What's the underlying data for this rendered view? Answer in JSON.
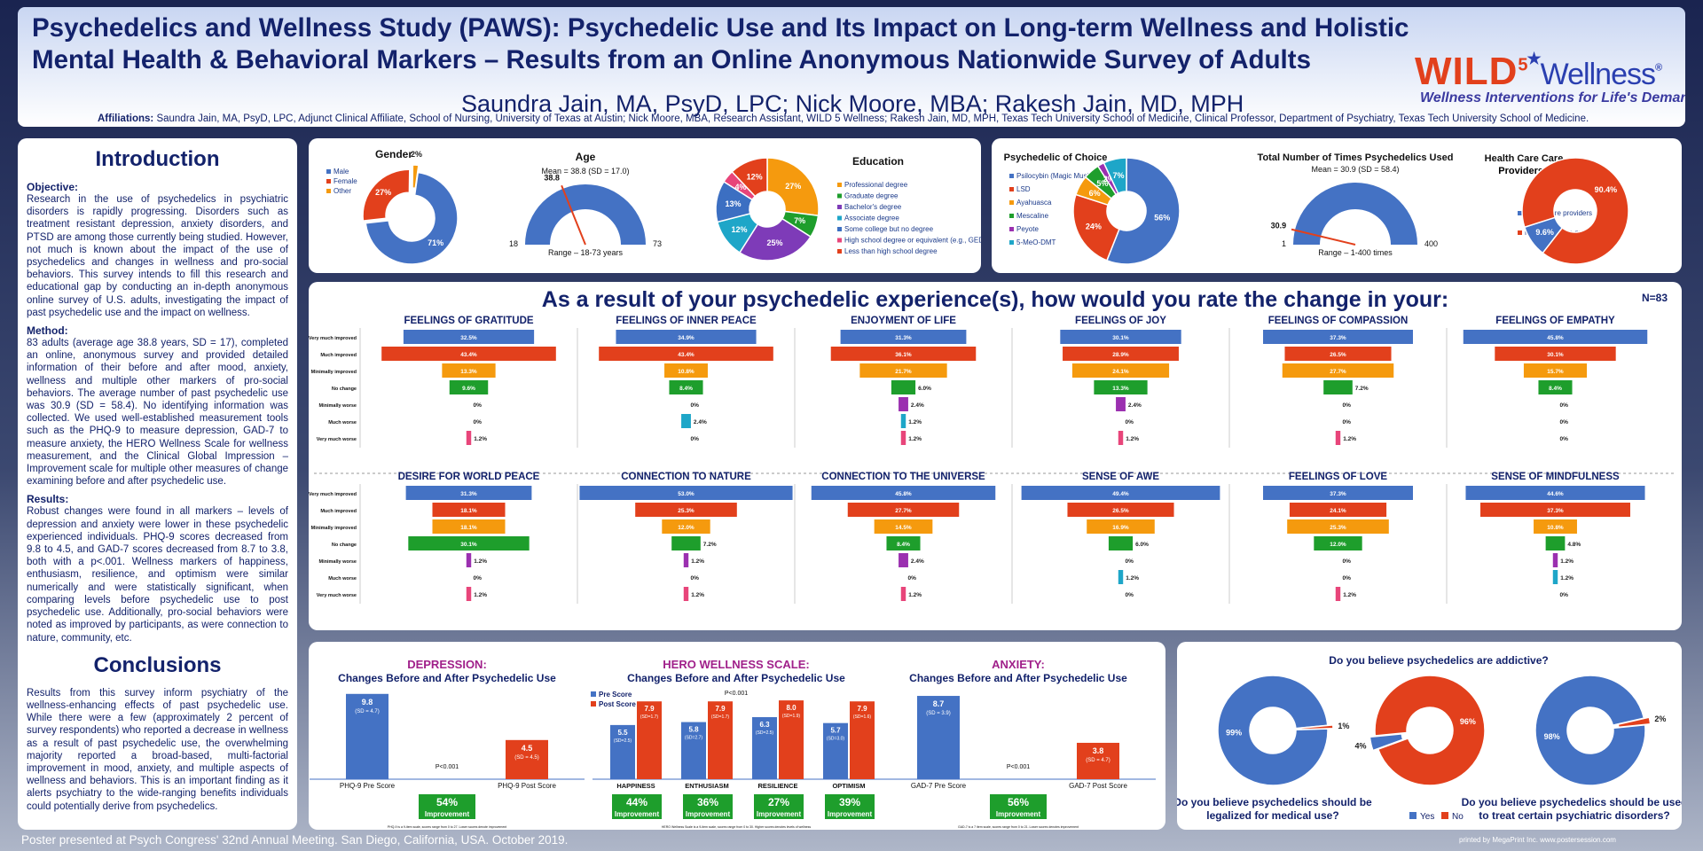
{
  "header": {
    "title": "Psychedelics and Wellness Study (PAWS): Psychedelic Use and Its Impact on Long-term Wellness and Holistic Mental Health & Behavioral Markers – Results from an Online Anonymous Nationwide Survey of Adults",
    "authors": "Saundra Jain, MA, PsyD, LPC; Nick Moore, MBA; Rakesh Jain, MD, MPH",
    "affiliations_label": "Affiliations:",
    "affiliations": "Saundra Jain, MA, PsyD, LPC, Adjunct Clinical Affiliate, School of Nursing, University of Texas at Austin; Nick Moore, MBA, Research Assistant, WILD 5 Wellness; Rakesh Jain, MD, MPH, Texas Tech University School of Medicine, Clinical Professor, Department of Psychiatry, Texas Tech University School of Medicine.",
    "logo_wild": "WILD",
    "logo_five": "5",
    "logo_wellness": "Wellness",
    "logo_reg": "®",
    "logo_tagline": "Wellness Interventions for Life's Demands"
  },
  "left": {
    "intro_title": "Introduction",
    "objective_label": "Objective:",
    "objective": "Research in the use of psychedelics in psychiatric disorders is rapidly progressing. Disorders such as treatment resistant depression, anxiety disorders, and PTSD are among those currently being studied. However, not much is known about the impact of the use of psychedelics and changes in wellness and pro-social behaviors. This survey intends to fill this research and educational gap by conducting an in-depth anonymous online survey of U.S. adults, investigating the impact of past psychedelic use and the impact on wellness.",
    "method_label": "Method:",
    "method": "83 adults (average age 38.8 years, SD = 17), completed an online, anonymous survey and provided detailed information of their before and after mood, anxiety, wellness and multiple other markers of pro-social behaviors. The average number of past psychedelic use was 30.9 (SD = 58.4). No identifying information was collected. We used well-established measurement tools such as the PHQ-9 to measure depression, GAD-7 to measure anxiety, the HERO Wellness Scale for wellness measurement, and the Clinical Global Impression – Improvement scale for multiple other measures of change examining before and after psychedelic use.",
    "results_label": "Results:",
    "results": "Robust changes were found in all markers – levels of depression and anxiety were lower in these psychedelic experienced individuals. PHQ-9 scores decreased from 9.8 to 4.5, and GAD-7 scores decreased from 8.7 to 3.8, both with a p<.001. Wellness markers of happiness, enthusiasm, resilience, and optimism were similar numerically and were statistically significant, when comparing levels before psychedelic use to post psychedelic use. Additionally, pro-social behaviors were noted as improved by participants, as were connection to nature, community, etc.",
    "conclusions_title": "Conclusions",
    "conclusions": "Results from this survey inform psychiatry of the wellness-enhancing effects of past psychedelic use. While there were a few (approximately 2 percent of survey respondents) who reported a decrease in wellness as a result of past psychedelic use, the overwhelming majority reported a broad-based, multi-factorial improvement in mood, anxiety, and multiple aspects of wellness and behaviors. This is an important finding as it alerts psychiatry to the wide-ranging benefits individuals could potentially derive from psychedelics."
  },
  "footer": {
    "text": "Poster presented at Psych Congress' 32nd Annual Meeting. San Diego, California, USA. October 2019.",
    "printer": "printed by MegaPrint Inc.   www.postersession.com"
  },
  "chart_data": [
    {
      "id": "gender",
      "type": "pie",
      "title": "Gender",
      "categories": [
        "Male",
        "Female",
        "Other"
      ],
      "values": [
        71,
        27,
        2
      ],
      "labels": [
        "71%",
        "27%",
        "2%"
      ],
      "colors": [
        "#4472c4",
        "#e2401c",
        "#f59a0e"
      ]
    },
    {
      "id": "age",
      "type": "gauge",
      "title": "Age",
      "subtitle": "Mean = 38.8 (SD = 17.0)",
      "min": 18,
      "max": 73,
      "value": 38.8,
      "min_label": "18",
      "max_label": "73",
      "value_label": "38.8",
      "footer": "Range – 18-73 years"
    },
    {
      "id": "education",
      "type": "pie",
      "title": "Education",
      "categories": [
        "Professional degree",
        "Graduate degree",
        "Bachelor's degree",
        "Associate degree",
        "Some college but no degree",
        "High school degree or equivalent (e.g., GED)",
        "Less than high school degree"
      ],
      "values": [
        27,
        7,
        25,
        12,
        13,
        4,
        12
      ],
      "labels": [
        "27%",
        "7%",
        "25%",
        "12%",
        "13%",
        "4%",
        "12%"
      ],
      "colors": [
        "#f59a0e",
        "#1e9e2c",
        "#7e3bb8",
        "#1ea6c8",
        "#3c6fc2",
        "#e8457a",
        "#e2401c"
      ]
    },
    {
      "id": "psychedelic",
      "type": "pie",
      "title": "Psychedelic of Choice",
      "categories": [
        "Psilocybin (Magic Mushrooms)",
        "LSD",
        "Ayahuasca",
        "Mescaline",
        "Peyote",
        "5-MeO-DMT"
      ],
      "values": [
        56,
        24,
        6,
        5,
        2,
        7
      ],
      "labels": [
        "56%",
        "24%",
        "6%",
        "5%",
        "2%",
        "7%"
      ],
      "colors": [
        "#4472c4",
        "#e2401c",
        "#f59a0e",
        "#1e9e2c",
        "#9b30b0",
        "#1ea6c8"
      ]
    },
    {
      "id": "times",
      "type": "gauge",
      "title": "Total Number of Times Psychedelics Used",
      "subtitle": "Mean = 30.9 (SD = 58.4)",
      "min": 1,
      "max": 400,
      "value": 30.9,
      "min_label": "1",
      "max_label": "400",
      "value_label": "30.9",
      "footer": "Range – 1-400 times"
    },
    {
      "id": "providers",
      "type": "pie",
      "title": "Health Care Providers?",
      "categories": [
        "Health care providers",
        "Not health care providers"
      ],
      "values": [
        9.6,
        90.4
      ],
      "labels": [
        "9.6%",
        "90.4%"
      ],
      "colors": [
        "#4472c4",
        "#e2401c"
      ]
    },
    {
      "id": "change",
      "type": "bar",
      "title": "As a result of your psychedelic experience(s), how would you rate the change in your:",
      "n_label": "N=83",
      "categories": [
        "Very much improved",
        "Much improved",
        "Minimally improved",
        "No change",
        "Minimally worse",
        "Much worse",
        "Very much worse"
      ],
      "colors": [
        "#4472c4",
        "#e2401c",
        "#f59a0e",
        "#1e9e2c",
        "#9b30b0",
        "#1ea6c8",
        "#e8457a"
      ],
      "series": [
        {
          "name": "FEELINGS OF GRATITUDE",
          "values": [
            32.5,
            43.4,
            13.3,
            9.6,
            0,
            0,
            1.2
          ],
          "labels": [
            "32.5%",
            "43.4%",
            "13.3%",
            "9.6%",
            "0%",
            "0%",
            "1.2%"
          ]
        },
        {
          "name": "FEELINGS OF INNER PEACE",
          "values": [
            34.9,
            43.4,
            10.8,
            8.4,
            0,
            2.4,
            0
          ],
          "labels": [
            "34.9%",
            "43.4%",
            "10.8%",
            "8.4%",
            "0%",
            "2.4%",
            "0%"
          ]
        },
        {
          "name": "ENJOYMENT OF LIFE",
          "values": [
            31.3,
            36.1,
            21.7,
            6.0,
            2.4,
            1.2,
            1.2
          ],
          "labels": [
            "31.3%",
            "36.1%",
            "21.7%",
            "6.0%",
            "2.4%",
            "1.2%",
            "1.2%"
          ]
        },
        {
          "name": "FEELINGS OF JOY",
          "values": [
            30.1,
            28.9,
            24.1,
            13.3,
            2.4,
            0,
            1.2
          ],
          "labels": [
            "30.1%",
            "28.9%",
            "24.1%",
            "13.3%",
            "2.4%",
            "0%",
            "1.2%"
          ]
        },
        {
          "name": "FEELINGS OF COMPASSION",
          "values": [
            37.3,
            26.5,
            27.7,
            7.2,
            0,
            0,
            1.2
          ],
          "labels": [
            "37.3%",
            "26.5%",
            "27.7%",
            "7.2%",
            "0%",
            "0%",
            "1.2%"
          ]
        },
        {
          "name": "FEELINGS OF EMPATHY",
          "values": [
            45.8,
            30.1,
            15.7,
            8.4,
            0,
            0,
            0
          ],
          "labels": [
            "45.8%",
            "30.1%",
            "15.7%",
            "8.4%",
            "0%",
            "0%",
            "0%"
          ]
        },
        {
          "name": "DESIRE FOR WORLD PEACE",
          "values": [
            31.3,
            18.1,
            18.1,
            30.1,
            1.2,
            0,
            1.2
          ],
          "labels": [
            "31.3%",
            "18.1%",
            "18.1%",
            "30.1%",
            "1.2%",
            "0%",
            "1.2%"
          ]
        },
        {
          "name": "CONNECTION TO NATURE",
          "values": [
            53.0,
            25.3,
            12.0,
            7.2,
            1.2,
            0,
            1.2
          ],
          "labels": [
            "53.0%",
            "25.3%",
            "12.0%",
            "7.2%",
            "1.2%",
            "0%",
            "1.2%"
          ]
        },
        {
          "name": "CONNECTION TO THE UNIVERSE",
          "values": [
            45.8,
            27.7,
            14.5,
            8.4,
            2.4,
            0,
            1.2
          ],
          "labels": [
            "45.8%",
            "27.7%",
            "14.5%",
            "8.4%",
            "2.4%",
            "0%",
            "1.2%"
          ]
        },
        {
          "name": "SENSE OF AWE",
          "values": [
            49.4,
            26.5,
            16.9,
            6.0,
            0,
            1.2,
            0
          ],
          "labels": [
            "49.4%",
            "26.5%",
            "16.9%",
            "6.0%",
            "0%",
            "1.2%",
            "0%"
          ]
        },
        {
          "name": "FEELINGS OF LOVE",
          "values": [
            37.3,
            24.1,
            25.3,
            12.0,
            0,
            0,
            1.2
          ],
          "labels": [
            "37.3%",
            "24.1%",
            "25.3%",
            "12.0%",
            "0%",
            "0%",
            "1.2%"
          ]
        },
        {
          "name": "SENSE OF MINDFULNESS",
          "values": [
            44.6,
            37.3,
            10.8,
            4.8,
            1.2,
            1.2,
            0
          ],
          "labels": [
            "44.6%",
            "37.3%",
            "10.8%",
            "4.8%",
            "1.2%",
            "1.2%",
            "0%"
          ]
        }
      ]
    },
    {
      "id": "depression",
      "type": "bar",
      "title": "DEPRESSION:",
      "subtitle": "Changes Before and After Psychedelic Use",
      "categories": [
        "PHQ-9 Pre Score",
        "PHQ-9 Post Score"
      ],
      "values": [
        9.8,
        4.5
      ],
      "value_labels": [
        "9.8",
        "4.5"
      ],
      "sd_labels": [
        "(SD = 4.7)",
        "(SD = 4.5)"
      ],
      "ylim": [
        0,
        11
      ],
      "p_label": "P<0.001",
      "improvement": "54%",
      "improvement_label": "Improvement",
      "note": "PHQ-9 is a 9-item scale, scores range from 0 to 27. Lower scores denote improvement"
    },
    {
      "id": "hero",
      "type": "bar",
      "title": "HERO WELLNESS SCALE:",
      "subtitle": "Changes Before and After Psychedelic Use",
      "categories": [
        "HAPPINESS",
        "ENTHUSIASM",
        "RESILIENCE",
        "OPTIMISM"
      ],
      "series": [
        {
          "name": "Pre Score",
          "values": [
            5.5,
            5.8,
            6.3,
            5.7
          ],
          "sd_labels": [
            "(SD=2.5)",
            "(SD=2.7)",
            "(SD=2.5)",
            "(SD=3.0)"
          ]
        },
        {
          "name": "Post Score",
          "values": [
            7.9,
            7.9,
            8.0,
            7.9
          ],
          "sd_labels": [
            "(SD=1.7)",
            "(SD=1.7)",
            "(SD=1.9)",
            "(SD=1.6)"
          ]
        }
      ],
      "ylim": [
        0,
        9
      ],
      "p_label": "P<0.001",
      "improvements": [
        "44%",
        "36%",
        "27%",
        "39%"
      ],
      "improvement_label": "Improvement",
      "note": "HERO Wellness Scale is a 9-item scale, scores range from 0 to 30. Higher scores denotes levels of wellness"
    },
    {
      "id": "anxiety",
      "type": "bar",
      "title": "ANXIETY:",
      "subtitle": "Changes Before and After Psychedelic Use",
      "categories": [
        "GAD-7 Pre Score",
        "GAD-7 Post Score"
      ],
      "values": [
        8.7,
        3.8
      ],
      "value_labels": [
        "8.7",
        "3.8"
      ],
      "sd_labels": [
        "(SD = 3.9)",
        "(SD = 4.7)"
      ],
      "ylim": [
        0,
        10
      ],
      "p_label": "P<0.001",
      "improvement": "56%",
      "improvement_label": "Improvement",
      "note": "GAD-7 is a 7 item scale, scores range from 0 to 21. Lower scores denotes improvement"
    },
    {
      "id": "addictive",
      "type": "pie",
      "title": "Do you believe psychedelics are addictive?",
      "categories": [
        "Yes",
        "No"
      ],
      "values": [
        4,
        96
      ],
      "labels": [
        "4%",
        "96%"
      ],
      "colors": [
        "#4472c4",
        "#e2401c"
      ]
    },
    {
      "id": "legalize",
      "type": "pie",
      "title": "Do you believe psychedelics should be legalized for medical use?",
      "categories": [
        "Yes",
        "No"
      ],
      "values": [
        99,
        1
      ],
      "labels": [
        "99%",
        "1%"
      ],
      "colors": [
        "#4472c4",
        "#e2401c"
      ]
    },
    {
      "id": "treat",
      "type": "pie",
      "title": "Do you believe psychedelics should be used to treat certain psychiatric disorders?",
      "categories": [
        "Yes",
        "No"
      ],
      "values": [
        98,
        2
      ],
      "labels": [
        "98%",
        "2%"
      ],
      "colors": [
        "#4472c4",
        "#e2401c"
      ],
      "legend": [
        "Yes",
        "No"
      ]
    }
  ]
}
